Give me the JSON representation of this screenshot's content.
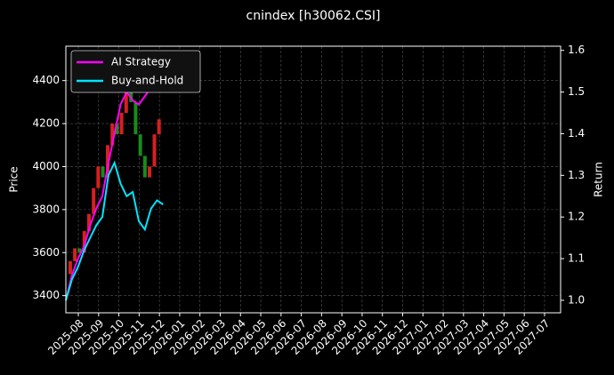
{
  "chart_data": {
    "type": "candle-line",
    "title": "cnindex [h30062.CSI]",
    "ylabel": "Price",
    "y2label": "Return",
    "xlim": [
      2025.532,
      2027.566
    ],
    "xticks": [
      {
        "value": 2025.5833,
        "label": "2025-08"
      },
      {
        "value": 2025.6667,
        "label": "2025-09"
      },
      {
        "value": 2025.75,
        "label": "2025-10"
      },
      {
        "value": 2025.8333,
        "label": "2025-11"
      },
      {
        "value": 2025.9167,
        "label": "2025-12"
      },
      {
        "value": 2026.0,
        "label": "2026-01"
      },
      {
        "value": 2026.0833,
        "label": "2026-02"
      },
      {
        "value": 2026.1667,
        "label": "2026-03"
      },
      {
        "value": 2026.25,
        "label": "2026-04"
      },
      {
        "value": 2026.3333,
        "label": "2026-05"
      },
      {
        "value": 2026.4167,
        "label": "2026-06"
      },
      {
        "value": 2026.5,
        "label": "2026-07"
      },
      {
        "value": 2026.5833,
        "label": "2026-08"
      },
      {
        "value": 2026.6667,
        "label": "2026-09"
      },
      {
        "value": 2026.75,
        "label": "2026-10"
      },
      {
        "value": 2026.8333,
        "label": "2026-11"
      },
      {
        "value": 2026.9167,
        "label": "2026-12"
      },
      {
        "value": 2027.0,
        "label": "2027-01"
      },
      {
        "value": 2027.0833,
        "label": "2027-02"
      },
      {
        "value": 2027.1667,
        "label": "2027-03"
      },
      {
        "value": 2027.25,
        "label": "2027-04"
      },
      {
        "value": 2027.3333,
        "label": "2027-05"
      },
      {
        "value": 2027.4167,
        "label": "2027-06"
      },
      {
        "value": 2027.5,
        "label": "2027-07"
      }
    ],
    "ylim": [
      3320,
      4560
    ],
    "yticks": [
      3400,
      3600,
      3800,
      4000,
      4200,
      4400
    ],
    "y2lim": [
      0.97,
      1.61
    ],
    "y2ticks": [
      {
        "value": 1.0,
        "label": "1.0"
      },
      1.1,
      1.2,
      1.3,
      1.4,
      1.5,
      {
        "value": 1.6,
        "label": "1.6"
      }
    ],
    "grid": true,
    "legend": "upper-left",
    "candles": {
      "up_color": "#d62020",
      "down_color": "#1a8a1a",
      "x": [
        2025.55,
        2025.569,
        2025.588,
        2025.608,
        2025.627,
        2025.646,
        2025.665,
        2025.684,
        2025.704,
        2025.723,
        2025.742,
        2025.761,
        2025.78,
        2025.8,
        2025.819,
        2025.838,
        2025.857,
        2025.876,
        2025.896,
        2025.915
      ],
      "open": [
        3500,
        3560,
        3620,
        3600,
        3700,
        3780,
        3900,
        4000,
        3950,
        4100,
        4200,
        4150,
        4250,
        4350,
        4300,
        4150,
        4050,
        3950,
        4000,
        4150
      ],
      "close": [
        3560,
        3620,
        3600,
        3700,
        3780,
        3900,
        4000,
        3950,
        4100,
        4200,
        4150,
        4250,
        4350,
        4300,
        4150,
        4050,
        3950,
        4000,
        4150,
        4220
      ]
    },
    "series": [
      {
        "name": "AI Strategy",
        "color": "#ff00ff",
        "axis": "y2",
        "x": [
          2025.532,
          2025.557,
          2025.582,
          2025.607,
          2025.632,
          2025.657,
          2025.682,
          2025.707,
          2025.732,
          2025.757,
          2025.782,
          2025.807,
          2025.832,
          2025.857,
          2025.882
        ],
        "values": [
          1.0,
          1.06,
          1.1,
          1.13,
          1.18,
          1.22,
          1.25,
          1.33,
          1.4,
          1.47,
          1.5,
          1.48,
          1.47,
          1.49,
          1.51
        ]
      },
      {
        "name": "Buy-and-Hold",
        "color": "#00e5ff",
        "axis": "y2",
        "x": [
          2025.532,
          2025.557,
          2025.582,
          2025.607,
          2025.632,
          2025.657,
          2025.682,
          2025.707,
          2025.732,
          2025.757,
          2025.782,
          2025.807,
          2025.832,
          2025.857,
          2025.882,
          2025.907,
          2025.932
        ],
        "values": [
          1.0,
          1.05,
          1.08,
          1.12,
          1.15,
          1.18,
          1.2,
          1.3,
          1.33,
          1.28,
          1.25,
          1.26,
          1.19,
          1.17,
          1.22,
          1.24,
          1.23
        ]
      }
    ]
  }
}
